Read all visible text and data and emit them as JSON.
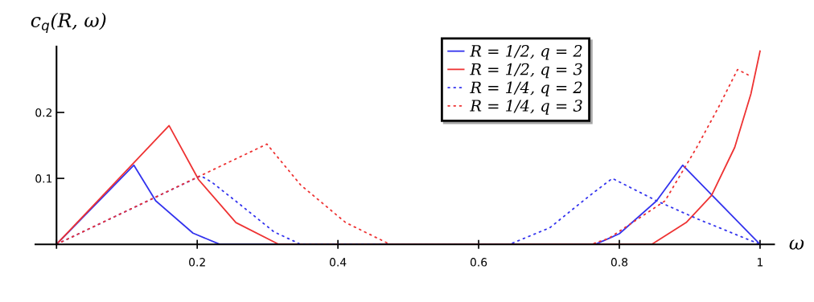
{
  "chart_data": {
    "type": "line",
    "xlabel": "ω",
    "ylabel": "c$_{q}$(R, ω)",
    "xlim": [
      -0.03,
      1.02
    ],
    "ylim": [
      0,
      0.3
    ],
    "xticks": [
      {
        "value": 0,
        "label": null
      },
      0.2,
      0.4,
      0.6,
      0.8,
      1
    ],
    "yticks": [
      0.1,
      0.2
    ],
    "grid": false,
    "legend": "top",
    "series": [
      {
        "name": "R = 1/2, q = 2",
        "color": "#3333ee",
        "line_style": "solid",
        "x": [
          0,
          0.11,
          0.141,
          0.194,
          0.232,
          0.766,
          0.8,
          0.853,
          0.89,
          1
        ],
        "values": [
          0,
          0.12,
          0.066,
          0.017,
          0,
          0,
          0.016,
          0.066,
          0.12,
          0
        ]
      },
      {
        "name": "R = 1/2, q = 3",
        "color": "#ee3333",
        "line_style": "solid",
        "x": [
          0,
          0.16,
          0.202,
          0.255,
          0.316,
          0.846,
          0.895,
          0.931,
          0.964,
          0.987,
          1
        ],
        "values": [
          0,
          0.18,
          0.098,
          0.033,
          0,
          0,
          0.033,
          0.074,
          0.147,
          0.228,
          0.293
        ]
      },
      {
        "name": "R = 1/4, q = 2",
        "color": "#3333ee",
        "line_style": "dotted",
        "x": [
          0,
          0.205,
          0.221,
          0.259,
          0.309,
          0.347,
          0.644,
          0.701,
          0.758,
          0.79,
          0.853,
          0.91,
          1
        ],
        "values": [
          0,
          0.104,
          0.094,
          0.062,
          0.019,
          0,
          0,
          0.025,
          0.074,
          0.1,
          0.066,
          0.039,
          0
        ]
      },
      {
        "name": "R = 1/4, q = 3",
        "color": "#ee3333",
        "line_style": "dotted",
        "x": [
          0,
          0.299,
          0.347,
          0.411,
          0.474,
          0.76,
          0.785,
          0.865,
          0.91,
          0.941,
          0.968,
          0.983
        ],
        "values": [
          0,
          0.152,
          0.09,
          0.033,
          0,
          0,
          0.009,
          0.066,
          0.147,
          0.208,
          0.265,
          0.257
        ]
      }
    ]
  }
}
